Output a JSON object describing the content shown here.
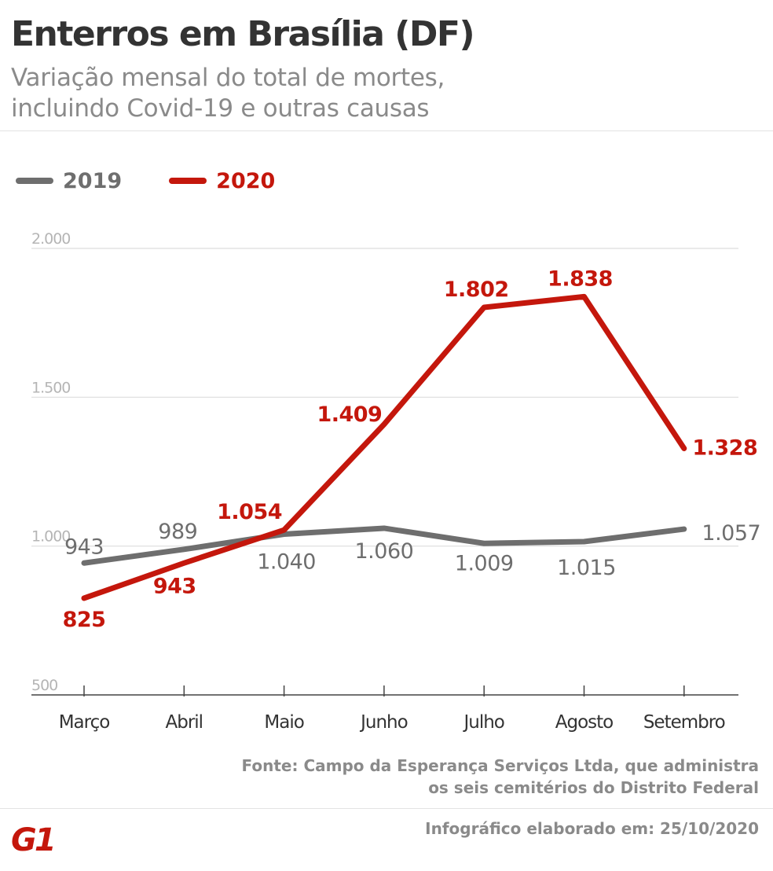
{
  "header": {
    "title": "Enterros em Brasília (DF)",
    "subtitle_line1": "Variação mensal do total de mortes,",
    "subtitle_line2": "incluindo Covid-19 e outras causas"
  },
  "footer": {
    "source_line1": "Fonte: Campo da Esperança Serviços Ltda, que administra",
    "source_line2": "os seis cemitérios do Distrito Federal",
    "logo": "G1",
    "credit": "Infográfico elaborado em: 25/10/2020"
  },
  "colors": {
    "series_2019": "#6e6e6e",
    "series_2020": "#c4170c",
    "grid": "#dddddd",
    "tick_label": "#b5b5b5",
    "axis_label": "#333333"
  },
  "chart_data": {
    "type": "line",
    "categories": [
      "Março",
      "Abril",
      "Maio",
      "Junho",
      "Julho",
      "Agosto",
      "Setembro"
    ],
    "ylim": [
      500,
      2000
    ],
    "yticks": [
      500,
      1000,
      1500,
      2000
    ],
    "ytick_labels": [
      "500",
      "1.000",
      "1.500",
      "2.000"
    ],
    "grid": true,
    "legend_position": "top-left",
    "series": [
      {
        "name": "2019",
        "color": "#6e6e6e",
        "values": [
          943,
          989,
          1040,
          1060,
          1009,
          1015,
          1057
        ],
        "labels": [
          "943",
          "989",
          "1.040",
          "1.060",
          "1.009",
          "1.015",
          "1.057"
        ]
      },
      {
        "name": "2020",
        "color": "#c4170c",
        "values": [
          825,
          943,
          1054,
          1409,
          1802,
          1838,
          1328
        ],
        "labels": [
          "825",
          "943",
          "1.054",
          "1.409",
          "1.802",
          "1.838",
          "1.328"
        ]
      }
    ]
  }
}
